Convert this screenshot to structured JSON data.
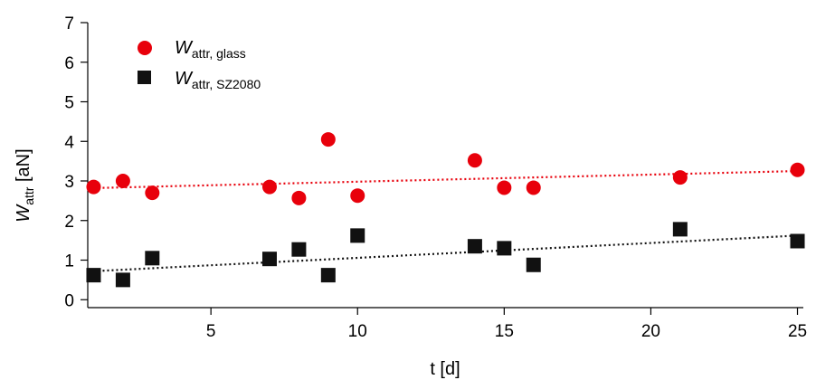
{
  "chart_data": {
    "type": "scatter",
    "xlabel": "t [d]",
    "ylabel": {
      "main": "W",
      "sub": "attr",
      "unit": " [aN]"
    },
    "xlim": [
      0.8,
      25.2
    ],
    "ylim": [
      -0.2,
      7
    ],
    "xticks": [
      5,
      10,
      15,
      20,
      25
    ],
    "yticks": [
      0,
      1,
      2,
      3,
      4,
      5,
      6,
      7
    ],
    "grid": false,
    "legend_position": "top-left",
    "series": [
      {
        "name": {
          "main": "W",
          "sub": "attr, glass"
        },
        "marker": "circle",
        "color": "#e8000b",
        "x": [
          1,
          2,
          3,
          7,
          8,
          9,
          10,
          14,
          15,
          16,
          21,
          25
        ],
        "y": [
          2.85,
          3.0,
          2.7,
          2.85,
          2.57,
          4.05,
          2.63,
          3.52,
          2.83,
          2.83,
          3.09,
          3.28
        ],
        "trend": {
          "start": [
            1,
            2.82
          ],
          "end": [
            25,
            3.25
          ]
        }
      },
      {
        "name": {
          "main": "W",
          "sub": "attr, SZ2080"
        },
        "marker": "square",
        "color": "#111111",
        "x": [
          1,
          2,
          3,
          7,
          8,
          9,
          10,
          14,
          15,
          16,
          21,
          25
        ],
        "y": [
          0.62,
          0.5,
          1.05,
          1.03,
          1.27,
          0.62,
          1.62,
          1.35,
          1.3,
          0.88,
          1.78,
          1.48
        ],
        "trend": {
          "start": [
            1,
            0.72
          ],
          "end": [
            25,
            1.62
          ]
        }
      }
    ]
  }
}
